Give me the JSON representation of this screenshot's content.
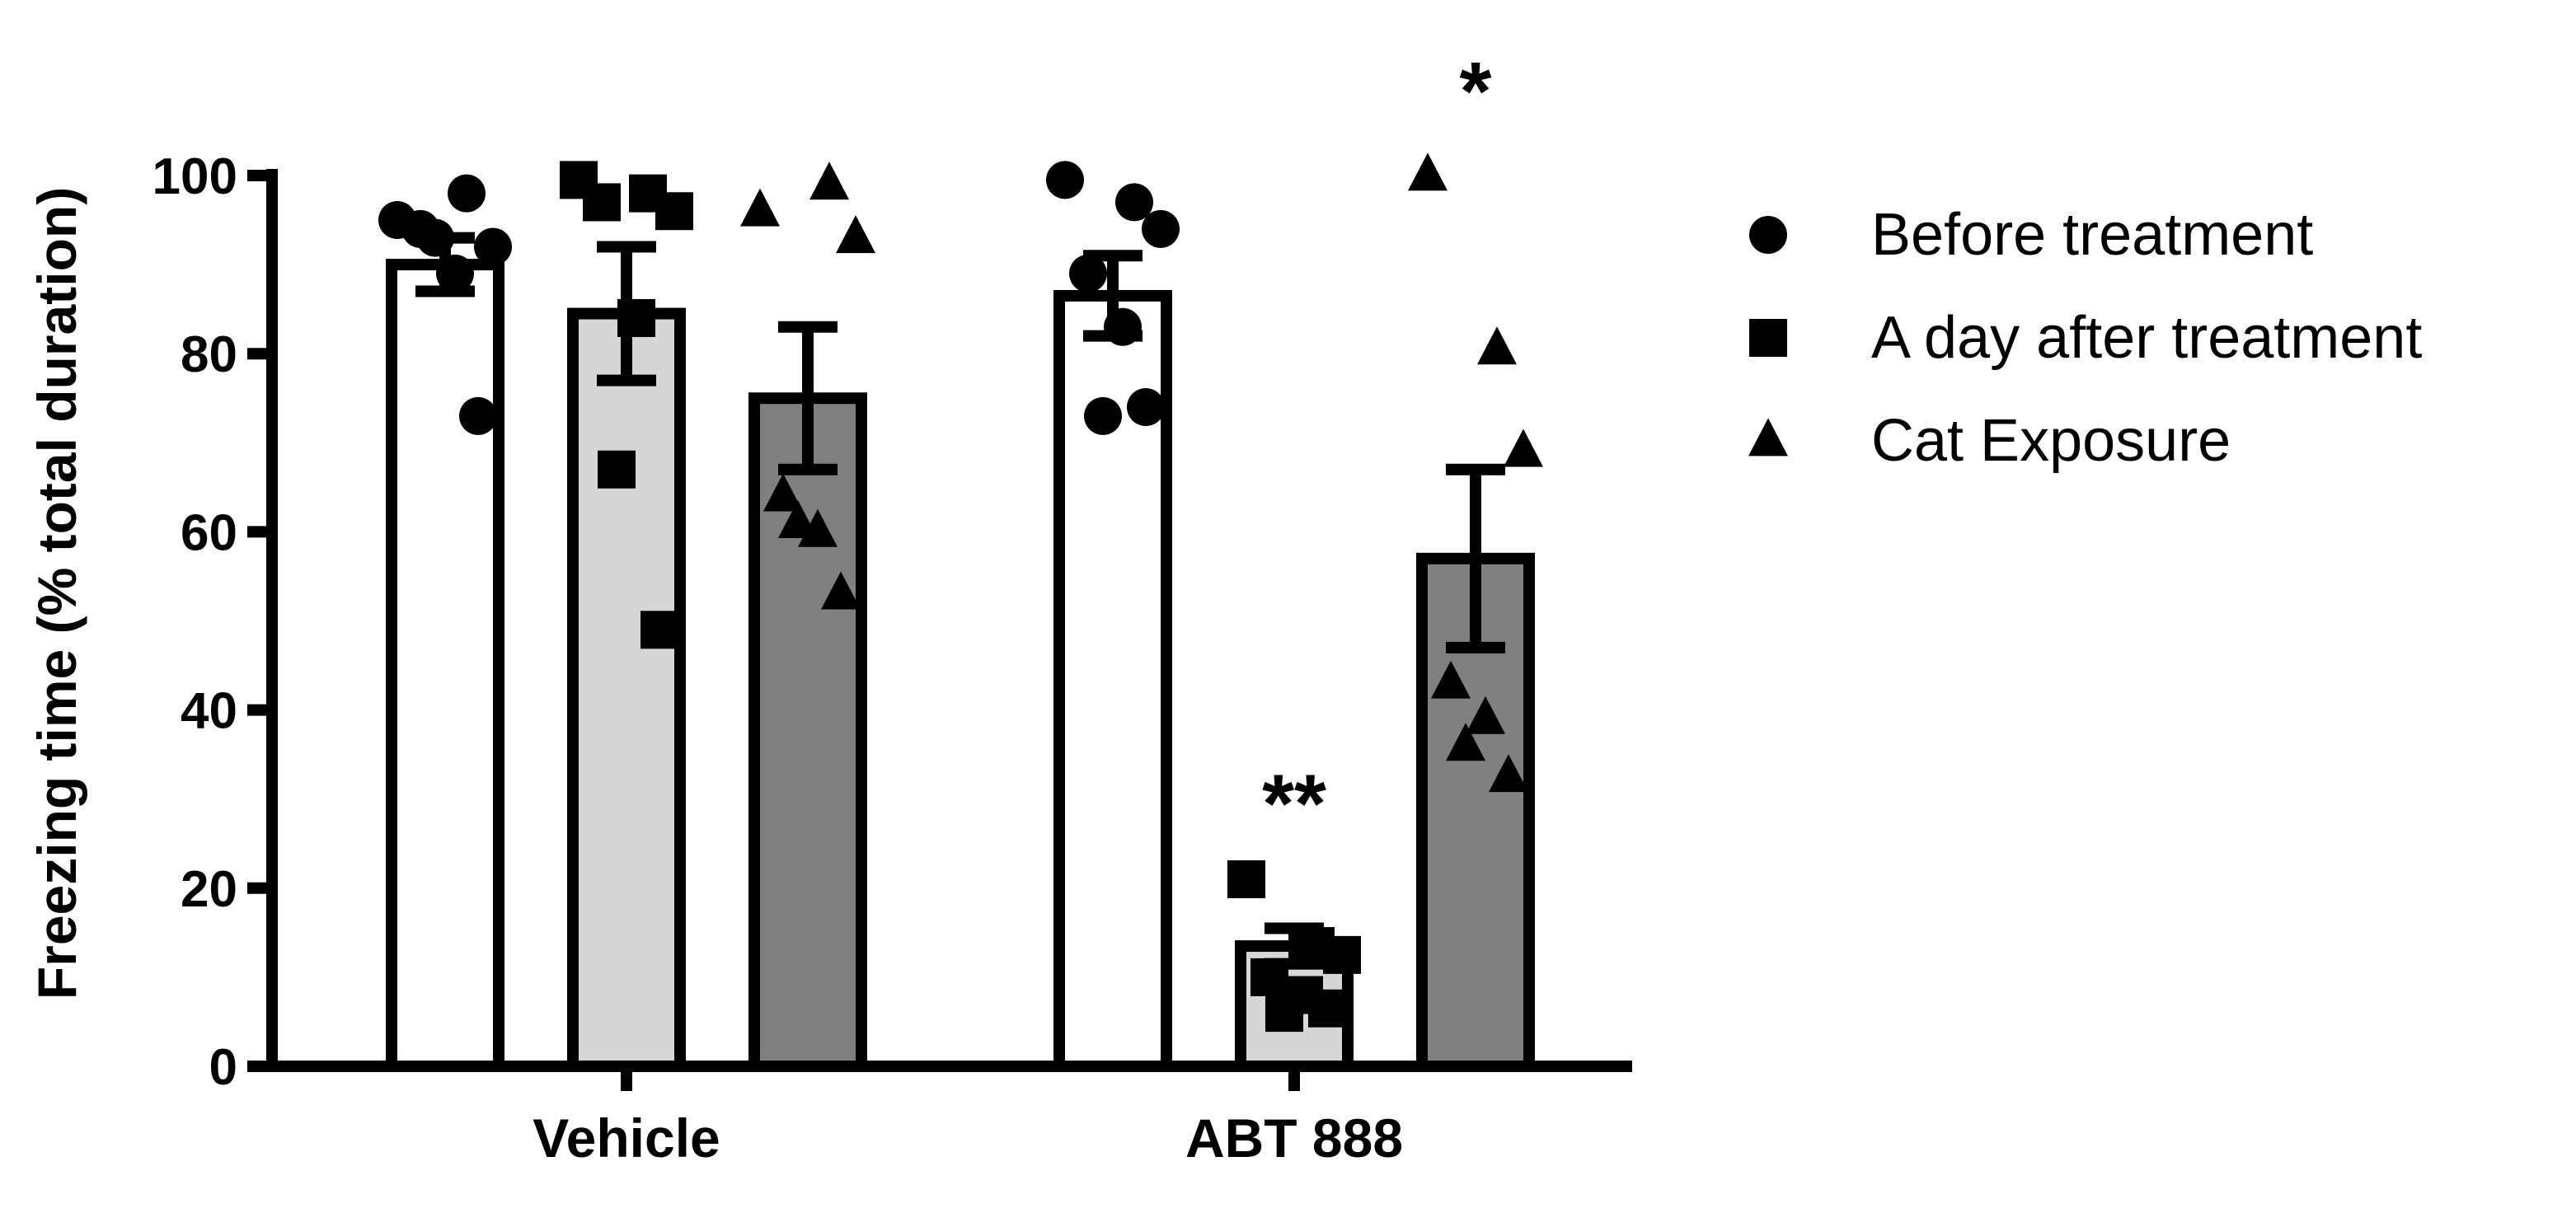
{
  "chart_data": {
    "type": "bar",
    "ylabel": "Freezing time (% total duration)",
    "xlabel": "",
    "ylim": [
      0,
      100
    ],
    "yticks": [
      0,
      20,
      40,
      60,
      80,
      100
    ],
    "categories": [
      "Vehicle",
      "ABT 888"
    ],
    "legend_position": "right",
    "series": [
      {
        "name": "Before treatment",
        "marker": "circle",
        "fill": "#ffffff",
        "values": [
          90.0,
          86.5
        ],
        "errors": [
          3.0,
          4.5
        ],
        "points": [
          [
            95.0,
            98.0,
            92.0,
            94.0,
            89.0,
            93.0,
            73.0
          ],
          [
            99.5,
            97.0,
            94.0,
            89.0,
            83.0,
            73.0,
            74.0
          ]
        ]
      },
      {
        "name": "A day after treatment",
        "marker": "square",
        "fill": "#d6d6d6",
        "values": [
          84.5,
          13.5
        ],
        "errors": [
          7.5,
          2.0
        ],
        "points": [
          [
            99.5,
            98.0,
            96.0,
            97.0,
            84.0,
            67.0,
            49.0
          ],
          [
            21.0,
            13.5,
            12.5,
            10.0,
            8.0,
            6.0,
            6.5
          ]
        ]
      },
      {
        "name": "Cat Exposure",
        "marker": "triangle",
        "fill": "#808080",
        "values": [
          75.0,
          57.0
        ],
        "errors": [
          8.0,
          10.0
        ],
        "points": [
          [
            96.0,
            99.0,
            93.0,
            64.0,
            60.0,
            61.0,
            53.0
          ],
          [
            100.0,
            80.5,
            69.0,
            43.0,
            39.0,
            36.0,
            32.5
          ]
        ]
      }
    ],
    "annotations": [
      {
        "category": "ABT 888",
        "series": "A day after treatment",
        "text": "**",
        "y": 30
      },
      {
        "category": "ABT 888",
        "series": "Cat Exposure",
        "text": "*",
        "y": 110
      }
    ]
  },
  "colors": {
    "stroke": "#000000",
    "before": "#ffffff",
    "after": "#d6d6d6",
    "cat": "#808080"
  }
}
